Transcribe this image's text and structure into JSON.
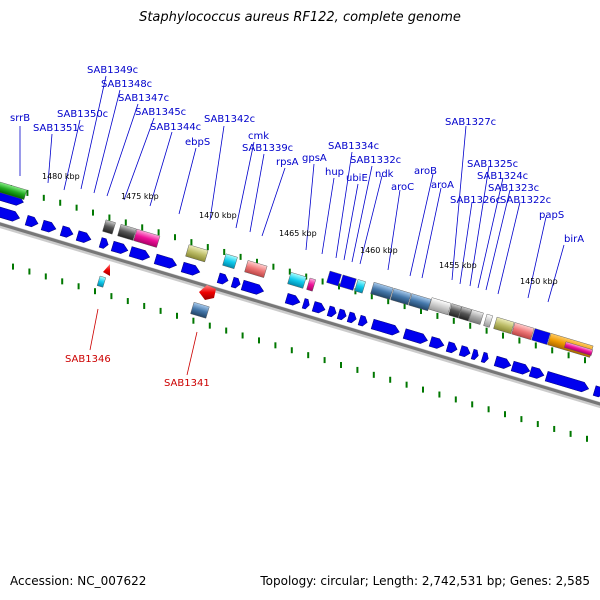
{
  "title": "Staphylococcus aureus RF122, complete genome",
  "footer": {
    "accession": "Accession: NC_007622",
    "summary": "Topology: circular; Length: 2,742,531 bp; Genes: 2,585"
  },
  "colors": {
    "label_forward": "#0000cc",
    "label_reverse": "#cc0000",
    "arrow": "#0000ee",
    "backbone": "#777777",
    "tick": "#007700"
  },
  "kbp_labels": [
    "1480 kbp",
    "1475 kbp",
    "1470 kbp",
    "1465 kbp",
    "1460 kbp",
    "1455 kbp",
    "1450 kbp"
  ],
  "gene_labels": [
    "srrB",
    "SAB1351c",
    "SAB1350c",
    "SAB1349c",
    "SAB1348c",
    "SAB1347c",
    "SAB1345c",
    "SAB1344c",
    "ebpS",
    "SAB1342c",
    "cmk",
    "SAB1339c",
    "rpsA",
    "gpsA",
    "hup",
    "SAB1334c",
    "ubiE",
    "SAB1332c",
    "ndk",
    "aroC",
    "aroB",
    "aroA",
    "SAB1327c",
    "SAB1326c",
    "SAB1325c",
    "SAB1324c",
    "SAB1323c",
    "SAB1322c",
    "papS",
    "birA"
  ],
  "reverse_labels": [
    "SAB1346",
    "SAB1341"
  ]
}
